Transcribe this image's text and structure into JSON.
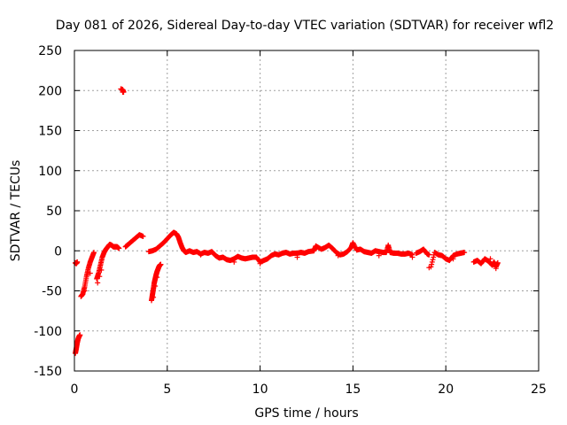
{
  "chart_data": {
    "type": "scatter",
    "title": "Day 081 of 2026, Sidereal Day-to-day VTEC variation (SDTVAR) for receiver wfl2",
    "xlabel": "GPS time / hours",
    "ylabel": "SDTVAR / TECUs",
    "xlim": [
      0,
      25
    ],
    "ylim": [
      -150,
      250
    ],
    "xticks": [
      "0",
      "5",
      "10",
      "15",
      "20",
      "25"
    ],
    "yticks": [
      "250",
      "200",
      "150",
      "100",
      "50",
      "0",
      "-50",
      "-100",
      "-150"
    ],
    "grid": true,
    "marker": "+",
    "color": "#ff0000",
    "series": [
      {
        "name": "SDTVAR",
        "x": [
          0.05,
          0.1,
          0.15,
          0.2,
          0.25,
          0.3,
          0.05,
          0.1,
          0.15,
          0.35,
          0.45,
          0.55,
          0.65,
          0.75,
          0.85,
          0.95,
          1.05,
          1.2,
          1.3,
          1.4,
          1.5,
          1.6,
          1.7,
          1.8,
          1.9,
          2.0,
          2.1,
          2.2,
          2.3,
          2.4,
          2.5,
          2.6,
          2.65,
          2.75,
          2.9,
          3.1,
          3.3,
          3.5,
          3.7,
          4.15,
          4.2,
          4.25,
          4.3,
          4.35,
          4.4,
          4.45,
          4.5,
          4.55,
          4.6,
          4.65,
          4.0,
          4.2,
          4.4,
          4.6,
          4.8,
          5.0,
          5.2,
          5.35,
          5.5,
          5.6,
          5.7,
          5.8,
          5.9,
          6.0,
          6.2,
          6.4,
          6.6,
          6.8,
          7.0,
          7.2,
          7.4,
          7.6,
          7.8,
          8.0,
          8.2,
          8.4,
          8.6,
          8.8,
          9.0,
          9.2,
          9.4,
          9.6,
          9.8,
          10.0,
          10.2,
          10.4,
          10.6,
          10.8,
          11.0,
          11.2,
          11.4,
          11.6,
          11.8,
          12.0,
          12.2,
          12.4,
          12.6,
          12.9,
          13.0,
          13.3,
          13.5,
          13.7,
          13.9,
          14.1,
          14.3,
          14.5,
          14.7,
          14.9,
          15.0,
          15.2,
          15.4,
          15.6,
          15.8,
          16.0,
          16.2,
          16.4,
          16.6,
          16.8,
          16.9,
          17.0,
          17.2,
          17.4,
          17.6,
          17.8,
          18.0,
          18.2,
          18.4,
          18.6,
          18.8,
          19.0,
          19.1,
          19.2,
          19.4,
          19.6,
          19.8,
          20.0,
          20.2,
          20.4,
          20.6,
          20.8,
          21.0,
          21.5,
          21.7,
          21.9,
          22.1,
          22.3,
          22.5,
          22.6,
          22.7,
          22.8
        ],
        "y": [
          -128,
          -122,
          -115,
          -110,
          -107,
          -105,
          -15,
          -16,
          -14,
          -57,
          -54,
          -45,
          -32,
          -22,
          -14,
          -8,
          -2,
          -35,
          -28,
          -18,
          -8,
          -2,
          2,
          5,
          8,
          7,
          5,
          5,
          5,
          3,
          202,
          201,
          198,
          5,
          8,
          12,
          16,
          20,
          18,
          -62,
          -55,
          -48,
          -40,
          -35,
          -30,
          -26,
          -23,
          -20,
          -18,
          -17,
          -1,
          0,
          2,
          6,
          10,
          15,
          20,
          23,
          21,
          17,
          10,
          4,
          0,
          -2,
          0,
          -2,
          -1,
          -4,
          -2,
          -3,
          -1,
          -6,
          -9,
          -8,
          -11,
          -12,
          -10,
          -7,
          -9,
          -10,
          -9,
          -8,
          -8,
          -14,
          -12,
          -10,
          -6,
          -4,
          -5,
          -3,
          -2,
          -4,
          -3,
          -3,
          -2,
          -3,
          -1,
          0,
          6,
          2,
          4,
          7,
          3,
          -2,
          -5,
          -4,
          -1,
          4,
          10,
          1,
          2,
          -1,
          -2,
          -3,
          0,
          -1,
          -2,
          -2,
          7,
          -2,
          -3,
          -3,
          -4,
          -4,
          -3,
          -5,
          -3,
          -1,
          2,
          -4,
          -5,
          -20,
          -2,
          -5,
          -6,
          -10,
          -12,
          -6,
          -4,
          -3,
          -2,
          -14,
          -12,
          -16,
          -10,
          -13,
          -18,
          -14,
          -20,
          -15
        ],
        "x2": [
          0.15,
          0.55,
          0.85,
          1.25,
          1.35,
          1.45,
          2.6,
          4.25,
          4.35,
          4.45,
          6.8,
          8.6,
          10.0,
          12.0,
          14.2,
          16.4,
          18.2,
          19.1,
          20.4,
          22.4,
          22.6,
          22.7
        ],
        "y2": [
          -14,
          -50,
          -28,
          -40,
          -32,
          -24,
          198,
          -58,
          -44,
          -33,
          -5,
          -14,
          -16,
          -8,
          -6,
          -6,
          -8,
          -21,
          -10,
          -10,
          -16,
          -22
        ]
      }
    ]
  }
}
